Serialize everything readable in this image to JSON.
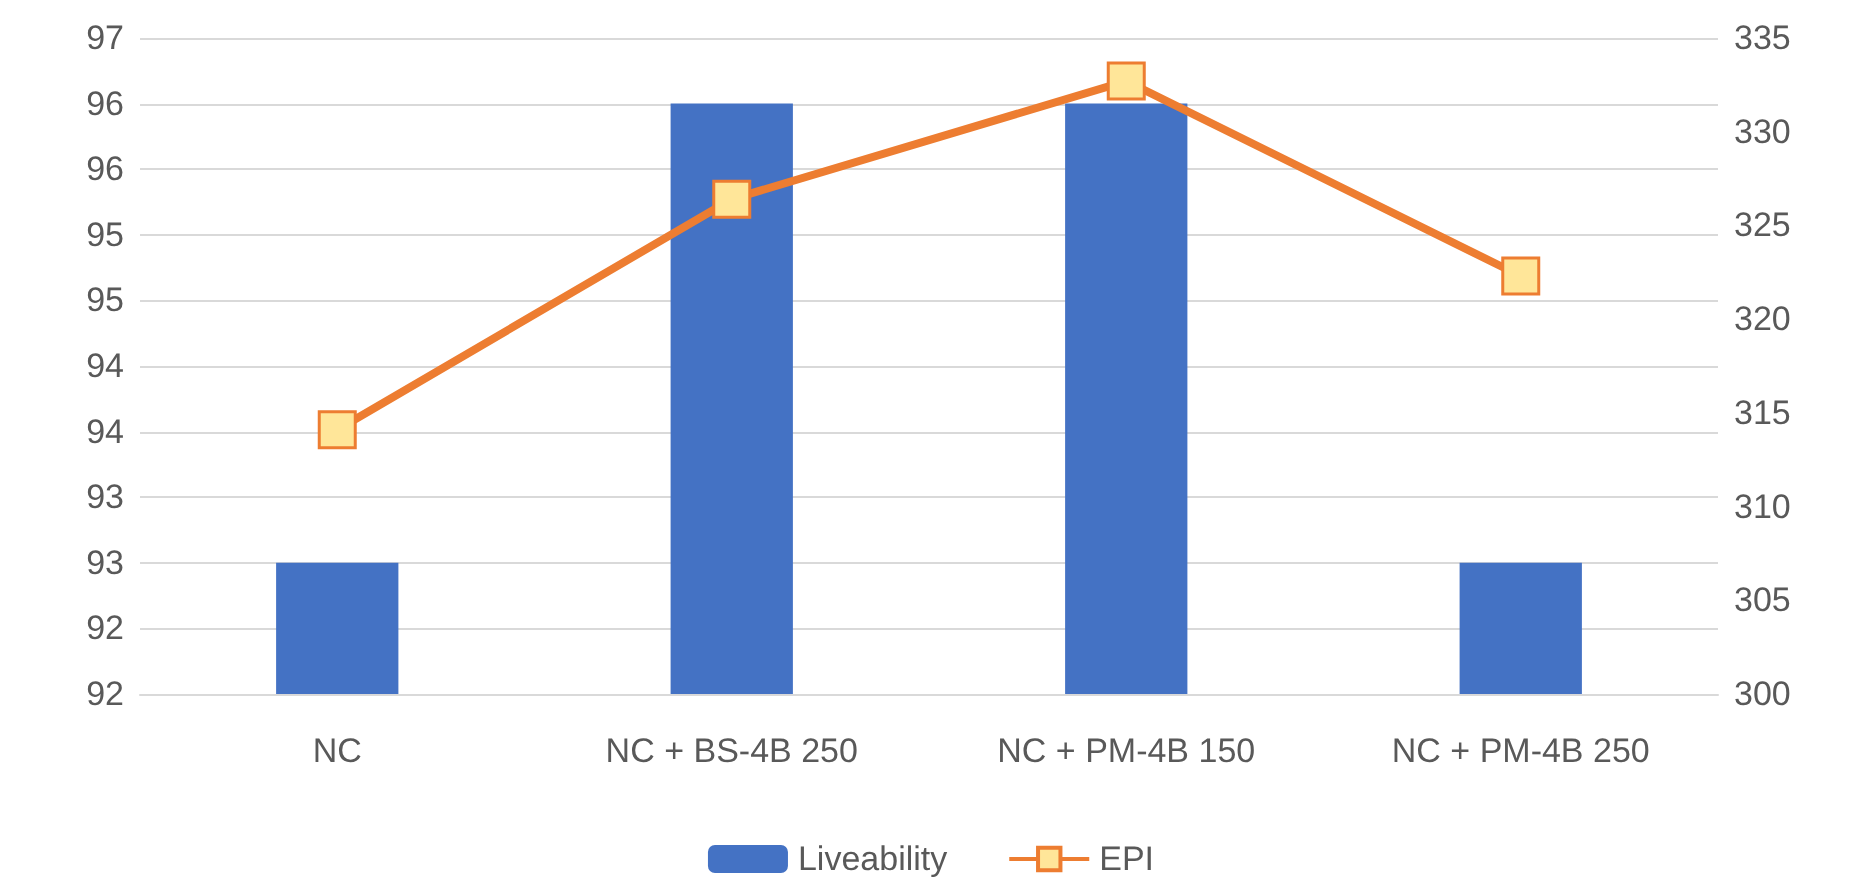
{
  "chart_data": {
    "type": "bar",
    "categories": [
      "NC",
      "NC + BS-4B 250",
      "NC + PM-4B 150",
      "NC + PM-4B 250"
    ],
    "series": [
      {
        "name": "Liveability",
        "color": "#4472c4",
        "values": [
          93,
          96.5,
          96.5,
          93
        ]
      },
      {
        "name": "EPI",
        "type": "line",
        "axis": "y2",
        "color": "#ed7d31",
        "values": [
          314.1,
          326.4,
          332.7,
          322.3
        ],
        "marker": "square"
      }
    ],
    "ylim": [
      92,
      97
    ],
    "yticks": [
      {
        "value": 92,
        "label": "92"
      },
      {
        "value": 92.5,
        "label": "92"
      },
      {
        "value": 93,
        "label": "93"
      },
      {
        "value": 93.5,
        "label": "93"
      },
      {
        "value": 94,
        "label": "94"
      },
      {
        "value": 94.5,
        "label": "94"
      },
      {
        "value": 95,
        "label": "95"
      },
      {
        "value": 95.5,
        "label": "95"
      },
      {
        "value": 96,
        "label": "96"
      },
      {
        "value": 96.5,
        "label": "96"
      },
      {
        "value": 97,
        "label": "97"
      }
    ],
    "y2lim": [
      300,
      335
    ],
    "y2ticks": [
      300,
      305,
      310,
      315,
      320,
      325,
      330,
      335
    ],
    "grid": "y",
    "legend": "bottom"
  }
}
